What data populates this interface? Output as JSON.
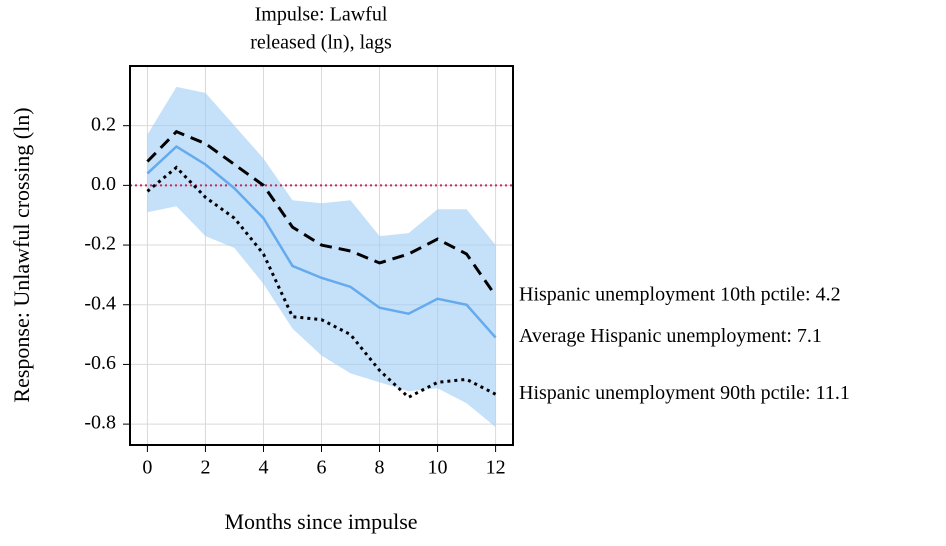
{
  "chart_data": {
    "type": "line",
    "title": [
      "Impulse: Lawful",
      "released (ln),  lags"
    ],
    "x_label": "Months since impulse",
    "y_label": "Response: Unlawful crossing (ln)",
    "x": [
      0,
      1,
      2,
      3,
      4,
      5,
      6,
      7,
      8,
      9,
      10,
      11,
      12
    ],
    "series": [
      {
        "name": "Hispanic unemployment 10th pctile: 4.2",
        "color": "#000000",
        "style": "dashed",
        "values": [
          0.08,
          0.18,
          0.14,
          0.07,
          0.0,
          -0.14,
          -0.2,
          -0.22,
          -0.26,
          -0.23,
          -0.18,
          -0.23,
          -0.37
        ]
      },
      {
        "name": "Average Hispanic unemployment: 7.1",
        "color": "#64aaee",
        "style": "solid",
        "values": [
          0.04,
          0.13,
          0.07,
          -0.01,
          -0.11,
          -0.27,
          -0.31,
          -0.34,
          -0.41,
          -0.43,
          -0.38,
          -0.4,
          -0.51
        ]
      },
      {
        "name": "Hispanic unemployment 90th pctile: 11.1",
        "color": "#000000",
        "style": "dotted",
        "values": [
          -0.02,
          0.06,
          -0.04,
          -0.11,
          -0.23,
          -0.44,
          -0.45,
          -0.5,
          -0.62,
          -0.71,
          -0.66,
          -0.65,
          -0.7
        ]
      }
    ],
    "band": {
      "color": "#9fcdf7",
      "upper": [
        0.17,
        0.33,
        0.31,
        0.2,
        0.09,
        -0.05,
        -0.06,
        -0.05,
        -0.17,
        -0.16,
        -0.08,
        -0.08,
        -0.2
      ],
      "lower": [
        -0.09,
        -0.07,
        -0.17,
        -0.21,
        -0.33,
        -0.48,
        -0.57,
        -0.63,
        -0.66,
        -0.69,
        -0.68,
        -0.73,
        -0.81
      ]
    },
    "hline": {
      "value": 0,
      "color": "#c8285a"
    },
    "xlim": [
      -0.6,
      12.6
    ],
    "xticks": [
      0,
      2,
      4,
      6,
      8,
      10,
      12
    ],
    "ylim": [
      -0.87,
      0.4
    ],
    "yticks": [
      0.2,
      {
        "value": 0,
        "label": "0.0"
      },
      -0.2,
      -0.4,
      -0.6,
      -0.8
    ],
    "grid": true
  }
}
